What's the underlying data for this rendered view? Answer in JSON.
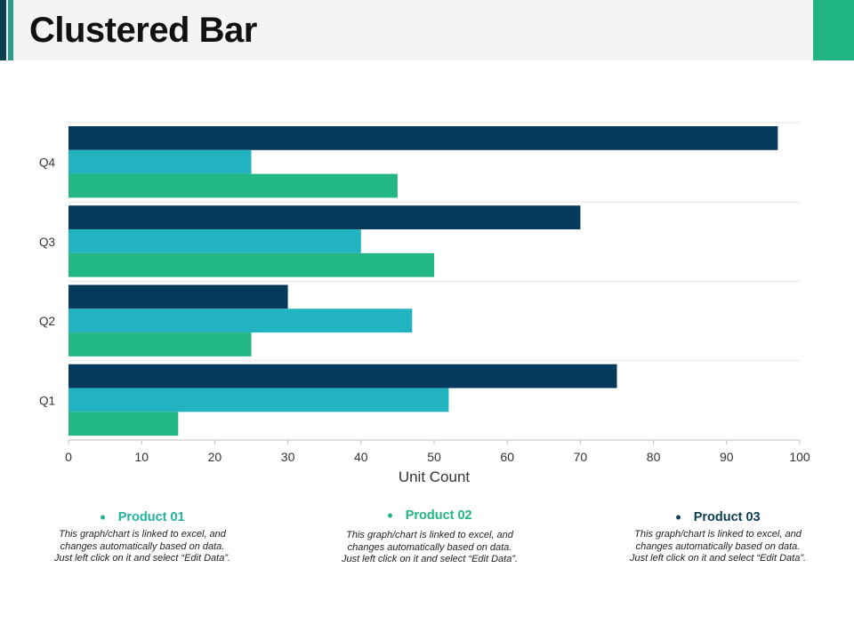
{
  "title": "Clustered Bar",
  "colors": {
    "accent_left_dark": "#0b3d52",
    "accent_left_teal": "#2a9d8f",
    "accent_right": "#22b584",
    "header_bg": "#f4f4f4"
  },
  "chart_data": {
    "type": "bar",
    "orientation": "horizontal",
    "categories": [
      "Q1",
      "Q2",
      "Q3",
      "Q4"
    ],
    "series": [
      {
        "name": "Product 03",
        "color": "#063a5c",
        "values": [
          75,
          30,
          70,
          97
        ]
      },
      {
        "name": "Product 02",
        "color": "#21b3bf",
        "values": [
          52,
          47,
          40,
          25
        ]
      },
      {
        "name": "Product 01",
        "color": "#22b784",
        "values": [
          15,
          25,
          50,
          45
        ]
      }
    ],
    "xlim": [
      0,
      100
    ],
    "xticks": [
      "0",
      "10",
      "20",
      "30",
      "40",
      "50",
      "60",
      "70",
      "80",
      "90",
      "100"
    ],
    "xlabel": "Unit Count",
    "ylabel": "",
    "grid": true,
    "legend": "bottom"
  },
  "legend": [
    {
      "label": "Product 01",
      "color": "#22b0a0",
      "desc": "This graph/chart is linked to excel, and changes automatically based on data. Just left click on it and select “Edit Data”."
    },
    {
      "label": "Product 02",
      "color": "#22b584",
      "desc": "This graph/chart is linked to excel, and changes automatically based on data. Just left click on it and select “Edit Data”."
    },
    {
      "label": "Product 03",
      "color": "#0b3d52",
      "desc": "This graph/chart is linked to excel, and changes automatically based on data. Just left click on it and select “Edit Data”."
    }
  ]
}
